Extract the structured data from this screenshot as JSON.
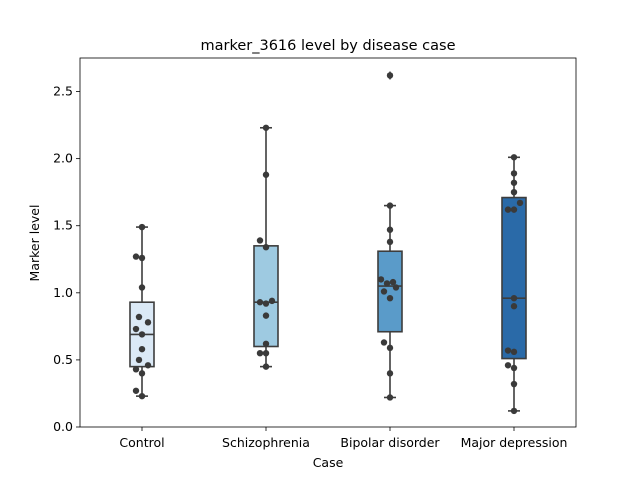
{
  "chart_data": {
    "type": "box",
    "title": "marker_3616 level by disease case",
    "xlabel": "Case",
    "ylabel": "Marker level",
    "ylim": [
      0.0,
      2.75
    ],
    "yticks": [
      "0.0",
      "0.5",
      "1.0",
      "1.5",
      "2.0",
      "2.5"
    ],
    "yticks_values": [
      0.0,
      0.5,
      1.0,
      1.5,
      2.0,
      2.5
    ],
    "grid": false,
    "categories": [
      "Control",
      "Schizophrenia",
      "Bipolar disorder",
      "Major depression"
    ],
    "colors": [
      "#dbe9f6",
      "#9ecae1",
      "#5a9bc9",
      "#2a6aa8"
    ],
    "boxes": [
      {
        "category": "Control",
        "whisker_low": 0.23,
        "q1": 0.45,
        "median": 0.69,
        "q3": 0.93,
        "whisker_high": 1.49,
        "outliers": []
      },
      {
        "category": "Schizophrenia",
        "whisker_low": 0.45,
        "q1": 0.6,
        "median": 0.93,
        "q3": 1.35,
        "whisker_high": 2.23,
        "outliers": []
      },
      {
        "category": "Bipolar disorder",
        "whisker_low": 0.22,
        "q1": 0.71,
        "median": 1.05,
        "q3": 1.31,
        "whisker_high": 1.65,
        "outliers": [
          2.62
        ]
      },
      {
        "category": "Major depression",
        "whisker_low": 0.12,
        "q1": 0.51,
        "median": 0.96,
        "q3": 1.71,
        "whisker_high": 2.01,
        "outliers": []
      }
    ],
    "points": [
      [
        0.23,
        0.27,
        0.4,
        0.43,
        0.46,
        0.5,
        0.58,
        0.69,
        0.73,
        0.78,
        0.82,
        1.04,
        1.26,
        1.27,
        1.49
      ],
      [
        0.45,
        0.55,
        0.55,
        0.62,
        0.83,
        0.92,
        0.93,
        0.94,
        1.34,
        1.39,
        1.88,
        2.23
      ],
      [
        0.22,
        0.4,
        0.59,
        0.63,
        0.96,
        1.01,
        1.04,
        1.07,
        1.08,
        1.1,
        1.38,
        1.47,
        1.65,
        2.62
      ],
      [
        0.12,
        0.32,
        0.44,
        0.46,
        0.56,
        0.57,
        0.9,
        0.96,
        1.62,
        1.62,
        1.67,
        1.75,
        1.82,
        1.89,
        2.01
      ]
    ]
  }
}
